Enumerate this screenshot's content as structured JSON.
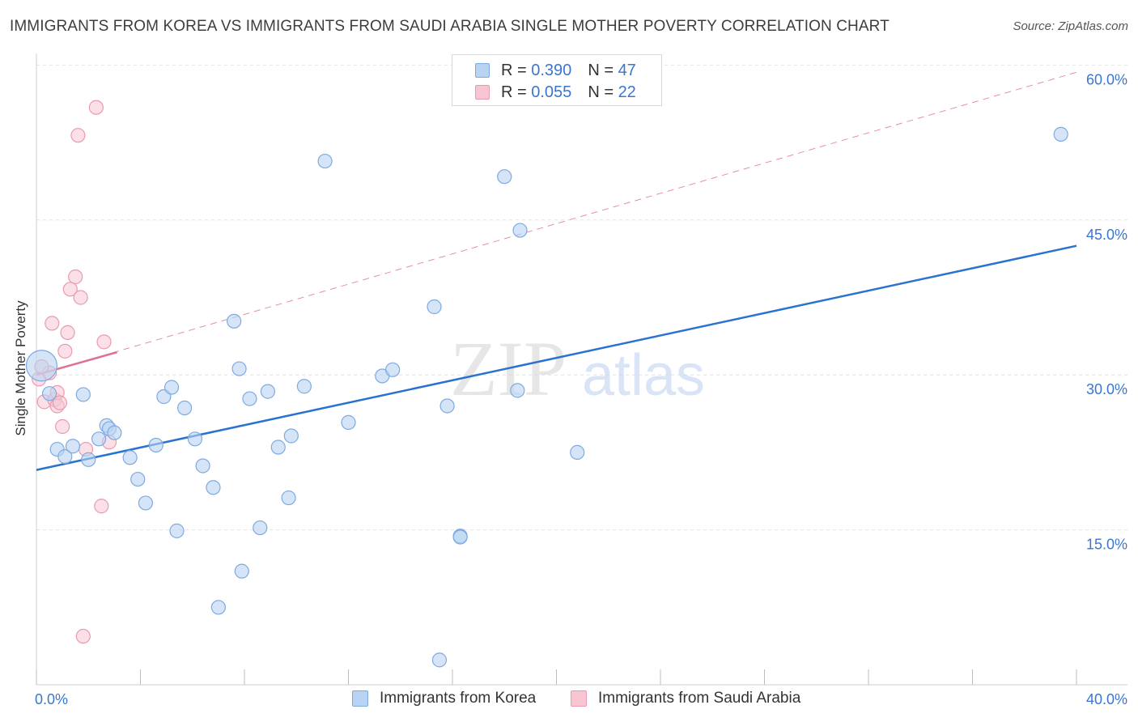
{
  "title": "IMMIGRANTS FROM KOREA VS IMMIGRANTS FROM SAUDI ARABIA SINGLE MOTHER POVERTY CORRELATION CHART",
  "source": "Source: ZipAtlas.com",
  "watermark": {
    "zip": "ZIP",
    "atlas": "atlas"
  },
  "legend": {
    "korea": {
      "r_label": "R = ",
      "r_value": "0.390",
      "n_label": "N = ",
      "n_value": "47"
    },
    "saudi": {
      "r_label": "R = ",
      "r_value": "0.055",
      "n_label": "N = ",
      "n_value": "22"
    }
  },
  "bottom_legend": {
    "korea": "Immigrants from Korea",
    "saudi": "Immigrants from Saudi Arabia"
  },
  "colors": {
    "korea_fill": "#b9d3f2",
    "korea_stroke": "#7eaae0",
    "korea_line": "#2a72d0",
    "saudi_fill": "#f8c6d3",
    "saudi_stroke": "#e99ab0",
    "saudi_line": "#e07096",
    "grid": "#e3e3e3",
    "axis_text": "#3a76d0"
  },
  "chart_data": {
    "type": "scatter",
    "title": "IMMIGRANTS FROM KOREA VS IMMIGRANTS FROM SAUDI ARABIA SINGLE MOTHER POVERTY CORRELATION CHART",
    "xlabel": "",
    "ylabel": "Single Mother Poverty",
    "xlim": [
      0,
      40
    ],
    "ylim": [
      0,
      60
    ],
    "x_tick_labels": [
      "0.0%",
      "40.0%"
    ],
    "y_ticks": [
      15,
      30,
      45,
      60
    ],
    "y_tick_labels": [
      "15.0%",
      "30.0%",
      "45.0%",
      "60.0%"
    ],
    "series": [
      {
        "name": "Immigrants from Korea",
        "R": 0.39,
        "N": 47,
        "trend": {
          "x": [
            0,
            40
          ],
          "y": [
            20.8,
            42.5
          ],
          "style": "solid"
        },
        "points": [
          {
            "x": 0.2,
            "y": 30.9,
            "big": true
          },
          {
            "x": 0.5,
            "y": 28.2
          },
          {
            "x": 0.8,
            "y": 22.8
          },
          {
            "x": 1.1,
            "y": 22.1
          },
          {
            "x": 1.4,
            "y": 23.1
          },
          {
            "x": 1.8,
            "y": 28.1
          },
          {
            "x": 2.0,
            "y": 21.8
          },
          {
            "x": 2.4,
            "y": 23.8
          },
          {
            "x": 2.7,
            "y": 25.1
          },
          {
            "x": 2.8,
            "y": 24.8
          },
          {
            "x": 3.0,
            "y": 24.4
          },
          {
            "x": 3.6,
            "y": 22.0
          },
          {
            "x": 3.9,
            "y": 19.9
          },
          {
            "x": 4.2,
            "y": 17.6
          },
          {
            "x": 4.6,
            "y": 23.2
          },
          {
            "x": 4.9,
            "y": 27.9
          },
          {
            "x": 5.2,
            "y": 28.8
          },
          {
            "x": 5.4,
            "y": 14.9
          },
          {
            "x": 5.7,
            "y": 26.8
          },
          {
            "x": 6.1,
            "y": 23.8
          },
          {
            "x": 6.4,
            "y": 21.2
          },
          {
            "x": 6.8,
            "y": 19.1
          },
          {
            "x": 7.0,
            "y": 7.5
          },
          {
            "x": 7.6,
            "y": 35.2
          },
          {
            "x": 7.8,
            "y": 30.6
          },
          {
            "x": 7.9,
            "y": 11.0
          },
          {
            "x": 8.2,
            "y": 27.7
          },
          {
            "x": 8.6,
            "y": 15.2
          },
          {
            "x": 8.9,
            "y": 28.4
          },
          {
            "x": 9.3,
            "y": 23.0
          },
          {
            "x": 9.7,
            "y": 18.1
          },
          {
            "x": 9.8,
            "y": 24.1
          },
          {
            "x": 10.3,
            "y": 28.9
          },
          {
            "x": 11.1,
            "y": 50.7
          },
          {
            "x": 12.0,
            "y": 25.4
          },
          {
            "x": 13.3,
            "y": 29.9
          },
          {
            "x": 13.7,
            "y": 30.5
          },
          {
            "x": 15.3,
            "y": 36.6
          },
          {
            "x": 15.5,
            "y": 2.4
          },
          {
            "x": 15.8,
            "y": 27.0
          },
          {
            "x": 16.3,
            "y": 14.4
          },
          {
            "x": 16.3,
            "y": 14.3
          },
          {
            "x": 18.0,
            "y": 49.2
          },
          {
            "x": 18.5,
            "y": 28.5
          },
          {
            "x": 18.6,
            "y": 44.0
          },
          {
            "x": 20.8,
            "y": 22.5
          },
          {
            "x": 39.4,
            "y": 53.3
          }
        ]
      },
      {
        "name": "Immigrants from Saudi Arabia",
        "R": 0.055,
        "N": 22,
        "trend": {
          "x": [
            0,
            3.1
          ],
          "y": [
            30.0,
            32.2
          ],
          "style": "solid"
        },
        "trend_extended": {
          "x": [
            0,
            40
          ],
          "y": [
            30.0,
            59.3
          ],
          "style": "dashed"
        },
        "points": [
          {
            "x": 0.1,
            "y": 29.6
          },
          {
            "x": 0.3,
            "y": 27.4
          },
          {
            "x": 0.5,
            "y": 30.2
          },
          {
            "x": 0.6,
            "y": 35.0
          },
          {
            "x": 0.7,
            "y": 27.6
          },
          {
            "x": 0.8,
            "y": 27.0
          },
          {
            "x": 0.8,
            "y": 28.3
          },
          {
            "x": 0.9,
            "y": 27.3
          },
          {
            "x": 1.0,
            "y": 25.0
          },
          {
            "x": 1.1,
            "y": 32.3
          },
          {
            "x": 1.2,
            "y": 34.1
          },
          {
            "x": 1.3,
            "y": 38.3
          },
          {
            "x": 1.5,
            "y": 39.5
          },
          {
            "x": 1.6,
            "y": 53.2
          },
          {
            "x": 1.7,
            "y": 37.5
          },
          {
            "x": 1.8,
            "y": 4.7
          },
          {
            "x": 1.9,
            "y": 22.8
          },
          {
            "x": 2.3,
            "y": 55.9
          },
          {
            "x": 2.5,
            "y": 17.3
          },
          {
            "x": 2.6,
            "y": 33.2
          },
          {
            "x": 2.8,
            "y": 23.5
          },
          {
            "x": 0.2,
            "y": 30.8
          }
        ]
      }
    ]
  }
}
